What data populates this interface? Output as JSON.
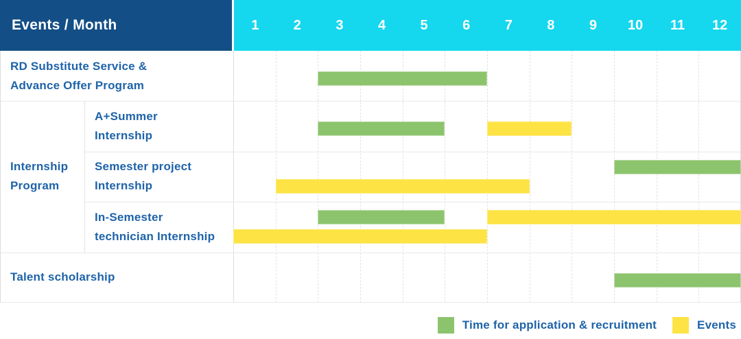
{
  "header": {
    "title": "Events / Month",
    "months": [
      "1",
      "2",
      "3",
      "4",
      "5",
      "6",
      "7",
      "8",
      "9",
      "10",
      "11",
      "12"
    ]
  },
  "colors": {
    "header_bg": "#134e86",
    "months_bg": "#15d7ee",
    "label_text": "#1e63a9",
    "recruitment_green": "#8cc46d",
    "events_yellow": "#fde344",
    "gridline": "#e2e2e2"
  },
  "legend": [
    {
      "series": "recruitment",
      "label": "Time for application & recruitment",
      "color": "#8cc46d"
    },
    {
      "series": "events",
      "label": "Events",
      "color": "#fde344"
    }
  ],
  "chart_data": {
    "type": "gantt",
    "unit": "month",
    "x_range": [
      1,
      12
    ],
    "series_legend": {
      "recruitment": "Time for application & recruitment",
      "events": "Events"
    },
    "rows": [
      {
        "group": null,
        "label": "RD Substitute Service &\nAdvance Offer Program",
        "bars": [
          {
            "series": "recruitment",
            "start_month": 3,
            "end_month": 6,
            "line": "middle"
          }
        ]
      },
      {
        "group": "Internship\nProgram",
        "label": "A+Summer\nInternship",
        "bars": [
          {
            "series": "recruitment",
            "start_month": 3,
            "end_month": 5,
            "line": "middle"
          },
          {
            "series": "events",
            "start_month": 7,
            "end_month": 8,
            "line": "middle"
          }
        ]
      },
      {
        "group": "Internship\nProgram",
        "label": "Semester project\nInternship",
        "bars": [
          {
            "series": "recruitment",
            "start_month": 10,
            "end_month": 12,
            "line": "top"
          },
          {
            "series": "events",
            "start_month": 2,
            "end_month": 7,
            "line": "bottom"
          }
        ]
      },
      {
        "group": "Internship\nProgram",
        "label": "In-Semester\ntechnician Internship",
        "bars": [
          {
            "series": "recruitment",
            "start_month": 3,
            "end_month": 5,
            "line": "top"
          },
          {
            "series": "events",
            "start_month": 7,
            "end_month": 12,
            "line": "top"
          },
          {
            "series": "events",
            "start_month": 1,
            "end_month": 6,
            "line": "bottom"
          }
        ]
      },
      {
        "group": null,
        "label": "Talent scholarship",
        "bars": [
          {
            "series": "recruitment",
            "start_month": 10,
            "end_month": 12,
            "line": "middle"
          }
        ]
      }
    ]
  }
}
